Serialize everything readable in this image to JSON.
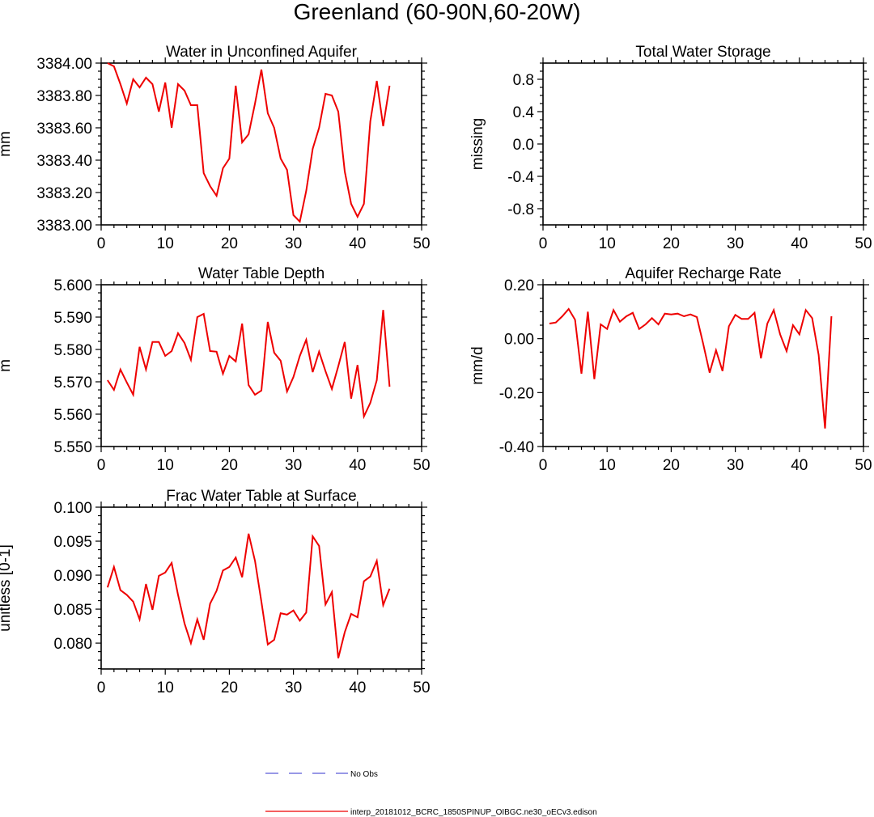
{
  "title": "Greenland (60-90N,60-20W)",
  "legend": {
    "items": [
      {
        "label": "No Obs",
        "color": "#5a5ad6",
        "style": "dashed"
      },
      {
        "label": "interp_20181012_BCRC_1850SPINUP_OIBGC.ne30_oECv3.edison",
        "color": "#ee0000",
        "style": "solid"
      }
    ]
  },
  "chart_data": [
    {
      "type": "line",
      "title": "Water in Unconfined Aquifer",
      "xlabel": "",
      "ylabel": "mm",
      "xlim": [
        0,
        50
      ],
      "ylim": [
        3383.0,
        3384.0
      ],
      "xticks": [
        "0",
        "10",
        "20",
        "30",
        "40",
        "50"
      ],
      "yticks": [
        {
          "v": 3383.0,
          "label": "3383.00"
        },
        {
          "v": 3383.2,
          "label": "3383.20"
        },
        {
          "v": 3383.4,
          "label": "3383.40"
        },
        {
          "v": 3383.6,
          "label": "3383.60"
        },
        {
          "v": 3383.8,
          "label": "3383.80"
        },
        {
          "v": 3384.0,
          "label": "3384.00"
        }
      ],
      "series": [
        {
          "color": "#ee0000",
          "x": [
            1,
            2,
            3,
            4,
            5,
            6,
            7,
            8,
            9,
            10,
            11,
            12,
            13,
            14,
            15,
            16,
            17,
            18,
            19,
            20,
            21,
            22,
            23,
            24,
            25,
            26,
            27,
            28,
            29,
            30,
            31,
            32,
            33,
            34,
            35,
            36,
            37,
            38,
            39,
            40,
            41,
            42,
            43,
            44,
            45
          ],
          "values": [
            3384.0,
            3383.98,
            3383.87,
            3383.75,
            3383.9,
            3383.85,
            3383.91,
            3383.87,
            3383.7,
            3383.88,
            3383.6,
            3383.87,
            3383.83,
            3383.74,
            3383.74,
            3383.32,
            3383.24,
            3383.18,
            3383.35,
            3383.41,
            3383.86,
            3383.51,
            3383.56,
            3383.75,
            3383.96,
            3383.69,
            3383.6,
            3383.41,
            3383.34,
            3383.06,
            3383.02,
            3383.21,
            3383.47,
            3383.6,
            3383.81,
            3383.8,
            3383.7,
            3383.33,
            3383.13,
            3383.05,
            3383.13,
            3383.64,
            3383.89,
            3383.61,
            3383.86
          ]
        }
      ]
    },
    {
      "type": "line",
      "title": "Total Water Storage",
      "xlabel": "",
      "ylabel": "missing",
      "xlim": [
        0,
        50
      ],
      "ylim": [
        -1.0,
        1.0
      ],
      "xticks": [
        "0",
        "10",
        "20",
        "30",
        "40",
        "50"
      ],
      "yticks": [
        {
          "v": -0.8,
          "label": "-0.8"
        },
        {
          "v": -0.4,
          "label": "-0.4"
        },
        {
          "v": 0.0,
          "label": "0.0"
        },
        {
          "v": 0.4,
          "label": "0.4"
        },
        {
          "v": 0.8,
          "label": "0.8"
        }
      ],
      "series": []
    },
    {
      "type": "line",
      "title": "Water Table Depth",
      "xlabel": "",
      "ylabel": "m",
      "xlim": [
        0,
        50
      ],
      "ylim": [
        5.55,
        5.6
      ],
      "xticks": [
        "0",
        "10",
        "20",
        "30",
        "40",
        "50"
      ],
      "yticks": [
        {
          "v": 5.55,
          "label": "5.550"
        },
        {
          "v": 5.56,
          "label": "5.560"
        },
        {
          "v": 5.57,
          "label": "5.570"
        },
        {
          "v": 5.58,
          "label": "5.580"
        },
        {
          "v": 5.59,
          "label": "5.590"
        },
        {
          "v": 5.6,
          "label": "5.600"
        }
      ],
      "series": [
        {
          "color": "#ee0000",
          "x": [
            1,
            2,
            3,
            4,
            5,
            6,
            7,
            8,
            9,
            10,
            11,
            12,
            13,
            14,
            15,
            16,
            17,
            18,
            19,
            20,
            21,
            22,
            23,
            24,
            25,
            26,
            27,
            28,
            29,
            30,
            31,
            32,
            33,
            34,
            35,
            36,
            37,
            38,
            39,
            40,
            41,
            42,
            43,
            44,
            45
          ],
          "values": [
            5.5705,
            5.5675,
            5.5738,
            5.5698,
            5.566,
            5.5808,
            5.5738,
            5.5823,
            5.5823,
            5.578,
            5.5795,
            5.585,
            5.582,
            5.5768,
            5.59,
            5.591,
            5.5795,
            5.5793,
            5.5725,
            5.578,
            5.5763,
            5.588,
            5.569,
            5.566,
            5.5673,
            5.5885,
            5.579,
            5.5765,
            5.567,
            5.5715,
            5.578,
            5.583,
            5.573,
            5.5793,
            5.5733,
            5.5678,
            5.5748,
            5.5823,
            5.5648,
            5.5752,
            5.5593,
            5.5635,
            5.5705,
            5.5922,
            5.5685
          ]
        }
      ]
    },
    {
      "type": "line",
      "title": "Aquifer Recharge Rate",
      "xlabel": "",
      "ylabel": "mm/d",
      "xlim": [
        0,
        50
      ],
      "ylim": [
        -0.4,
        0.2
      ],
      "xticks": [
        "0",
        "10",
        "20",
        "30",
        "40",
        "50"
      ],
      "yticks": [
        {
          "v": -0.4,
          "label": "-0.40"
        },
        {
          "v": -0.2,
          "label": "-0.20"
        },
        {
          "v": 0.0,
          "label": "0.00"
        },
        {
          "v": 0.2,
          "label": "0.20"
        }
      ],
      "series": [
        {
          "color": "#ee0000",
          "x": [
            1,
            2,
            3,
            4,
            5,
            6,
            7,
            8,
            9,
            10,
            11,
            12,
            13,
            14,
            15,
            16,
            17,
            18,
            19,
            20,
            21,
            22,
            23,
            24,
            25,
            26,
            27,
            28,
            29,
            30,
            31,
            32,
            33,
            34,
            35,
            36,
            37,
            38,
            39,
            40,
            41,
            42,
            43,
            44,
            45
          ],
          "values": [
            0.056,
            0.06,
            0.083,
            0.11,
            0.07,
            -0.13,
            0.1,
            -0.15,
            0.053,
            0.036,
            0.106,
            0.063,
            0.083,
            0.096,
            0.036,
            0.053,
            0.076,
            0.053,
            0.093,
            0.09,
            0.093,
            0.083,
            0.09,
            0.08,
            -0.02,
            -0.126,
            -0.043,
            -0.12,
            0.046,
            0.088,
            0.073,
            0.073,
            0.096,
            -0.073,
            0.056,
            0.106,
            0.016,
            -0.046,
            0.05,
            0.016,
            0.106,
            0.076,
            -0.06,
            -0.333,
            0.083
          ]
        }
      ]
    },
    {
      "type": "line",
      "title": "Frac Water Table at Surface",
      "xlabel": "",
      "ylabel": "unitless [0-1]",
      "xlim": [
        0,
        50
      ],
      "ylim": [
        0.0762,
        0.1
      ],
      "xticks": [
        "0",
        "10",
        "20",
        "30",
        "40",
        "50"
      ],
      "yticks": [
        {
          "v": 0.08,
          "label": "0.080"
        },
        {
          "v": 0.085,
          "label": "0.085"
        },
        {
          "v": 0.09,
          "label": "0.090"
        },
        {
          "v": 0.095,
          "label": "0.095"
        },
        {
          "v": 0.1,
          "label": "0.100"
        }
      ],
      "series": [
        {
          "color": "#ee0000",
          "x": [
            1,
            2,
            3,
            4,
            5,
            6,
            7,
            8,
            9,
            10,
            11,
            12,
            13,
            14,
            15,
            16,
            17,
            18,
            19,
            20,
            21,
            22,
            23,
            24,
            25,
            26,
            27,
            28,
            29,
            30,
            31,
            32,
            33,
            34,
            35,
            36,
            37,
            38,
            39,
            40,
            41,
            42,
            43,
            44,
            45
          ],
          "values": [
            0.0882,
            0.0912,
            0.0878,
            0.0871,
            0.0861,
            0.0835,
            0.0887,
            0.0849,
            0.0899,
            0.0904,
            0.0918,
            0.0871,
            0.0829,
            0.08,
            0.0835,
            0.0805,
            0.0858,
            0.0877,
            0.0907,
            0.0912,
            0.0926,
            0.0897,
            0.0961,
            0.0921,
            0.0861,
            0.0798,
            0.0805,
            0.0844,
            0.0842,
            0.0848,
            0.0833,
            0.0845,
            0.0957,
            0.0943,
            0.0857,
            0.0875,
            0.0778,
            0.0816,
            0.0843,
            0.0838,
            0.0891,
            0.0898,
            0.0921,
            0.0856,
            0.088
          ]
        }
      ]
    }
  ]
}
